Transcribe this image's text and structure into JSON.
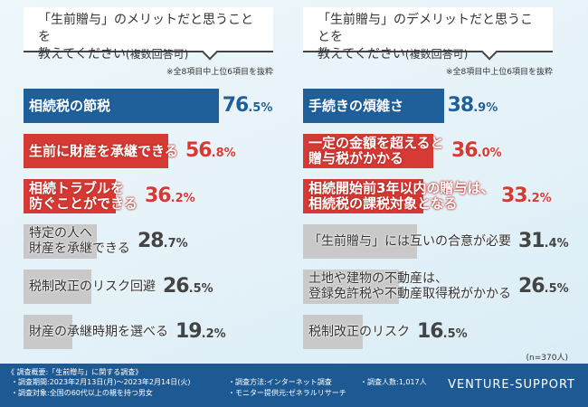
{
  "chart_data": [
    {
      "type": "bar",
      "title": "「生前贈与」のメリットだと思うことを",
      "subtitle": "教えてください",
      "subtitle_note": "(複数回答可)",
      "note": "※全8項目中上位6項目を抜粋",
      "categories": [
        "相続税の節税",
        "生前に財産を承継できる",
        "相続トラブルを\n防ぐことができる",
        "特定の人へ\n財産を承継できる",
        "税制改正のリスク回避",
        "財産の承継時期を選べる"
      ],
      "values": [
        76.5,
        56.8,
        36.2,
        28.7,
        26.5,
        19.2
      ],
      "colors": [
        "blue",
        "red",
        "red",
        "gray",
        "gray",
        "gray"
      ],
      "unit": "%"
    },
    {
      "type": "bar",
      "title": "「生前贈与」のデメリットだと思うことを",
      "subtitle": "教えてください",
      "subtitle_note": "(複数回答可)",
      "note": "※全8項目中上位6項目を抜粋",
      "categories": [
        "手続きの煩雑さ",
        "一定の金額を超えると\n贈与税がかかる",
        "相続開始前3年以内の贈与は、\n相続税の課税対象となる",
        "「生前贈与」には互いの合意が必要",
        "土地や建物の不動産は、\n登録免許税や不動産取得税がかかる",
        "税制改正のリスク"
      ],
      "values": [
        38.9,
        36.0,
        33.2,
        31.4,
        26.5,
        16.5
      ],
      "colors": [
        "blue",
        "red",
        "red",
        "gray",
        "gray",
        "gray"
      ],
      "unit": "%"
    }
  ],
  "sample": "(n=370人)",
  "footer": {
    "title": "《 調査概要:「生前贈与」に関する調査》",
    "period": "・調査期間:2023年2月13日(月)〜2023年2月14日(火)",
    "target": "・調査対象:全国の60代以上の親を持つ男女",
    "method": "・調査方法:インターネット調査",
    "provider": "・モニター提供元:ゼネラルリサーチ",
    "count": "・調査人数:1,017人",
    "brand": "VENTURE-SUPPORT"
  }
}
